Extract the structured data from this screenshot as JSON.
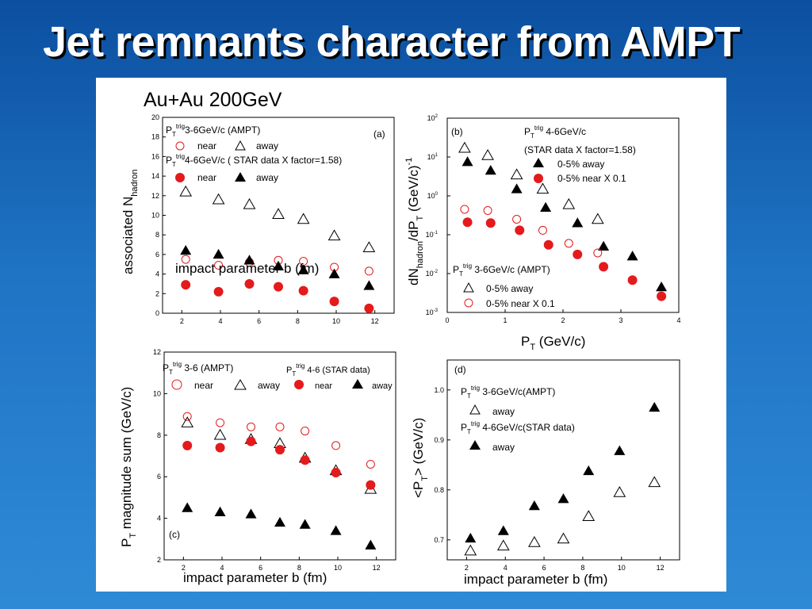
{
  "slide": {
    "title": "Jet remnants character from AMPT",
    "figure_heading": "Au+Au 200GeV"
  },
  "colors": {
    "background": "#1f74c4",
    "title_text": "#ffffff",
    "open_marker": "#e41a1c",
    "filled_marker": "#e41a1c",
    "triangle": "#000000"
  },
  "chart_data": [
    {
      "id": "a",
      "panel_label": "(a)",
      "type": "scatter",
      "xlabel": "impact parameter b (fm)",
      "ylabel": "associated N",
      "ylabel_sub": "hadron",
      "xlim": [
        1.0,
        13.0
      ],
      "ylim": [
        0,
        20
      ],
      "xticks": [
        "2",
        "4",
        "6",
        "8",
        "10",
        "12"
      ],
      "yticks": [
        "0",
        "2",
        "4",
        "6",
        "8",
        "10",
        "12",
        "14",
        "16",
        "18",
        "20"
      ],
      "legend": {
        "group1_pt": "P",
        "group1_sub": "T",
        "group1_sup": "trig",
        "group1_rest": "3-6GeV/c (AMPT)",
        "group2_pt": "P",
        "group2_sub": "T",
        "group2_sup": "trig",
        "group2_rest": "4-6GeV/c ( STAR data X factor=1.58)",
        "near": "near",
        "away": "away"
      },
      "series": [
        {
          "key": "near_ampt",
          "marker": "open-circle",
          "x": [
            2.2,
            3.9,
            5.5,
            7.0,
            8.3,
            9.9,
            11.7
          ],
          "y": [
            5.5,
            4.9,
            5.2,
            5.4,
            5.3,
            4.7,
            4.3
          ]
        },
        {
          "key": "away_ampt",
          "marker": "open-triangle",
          "x": [
            2.2,
            3.9,
            5.5,
            7.0,
            8.3,
            9.9,
            11.7
          ],
          "y": [
            12.4,
            11.6,
            11.1,
            10.1,
            9.6,
            7.9,
            6.7
          ]
        },
        {
          "key": "near_star",
          "marker": "filled-circle",
          "x": [
            2.2,
            3.9,
            5.5,
            7.0,
            8.3,
            9.9,
            11.7
          ],
          "y": [
            2.9,
            2.2,
            3.0,
            2.7,
            2.3,
            1.2,
            0.5
          ]
        },
        {
          "key": "away_star",
          "marker": "filled-triangle",
          "x": [
            2.2,
            3.9,
            5.5,
            7.0,
            8.3,
            9.9,
            11.7
          ],
          "y": [
            6.4,
            6.0,
            5.4,
            4.8,
            4.4,
            4.0,
            2.8
          ]
        }
      ]
    },
    {
      "id": "b",
      "panel_label": "(b)",
      "type": "scatter",
      "xlabel": "P",
      "xlabel_sub": "T",
      "xlabel_rest": " (GeV/c)",
      "ylabel": "dN",
      "ylabel_sub": "hadron",
      "ylabel_rest": "/dP",
      "ylabel_sub2": "T",
      "ylabel_rest2": " (GeV/c)",
      "ylabel_sup": "-1",
      "log_y": true,
      "xlim": [
        0,
        4
      ],
      "ylim_log10": [
        -3,
        2
      ],
      "xticks": [
        "0",
        "1",
        "2",
        "3",
        "4"
      ],
      "yticks": [
        {
          "base": "10",
          "exp": "-3"
        },
        {
          "base": "10",
          "exp": "-2"
        },
        {
          "base": "10",
          "exp": "-1"
        },
        {
          "base": "10",
          "exp": "0"
        },
        {
          "base": "10",
          "exp": "1"
        },
        {
          "base": "10",
          "exp": "2"
        }
      ],
      "legend": {
        "star_pt": "P",
        "star_sub": "T",
        "star_sup": "trig",
        "star_rest": " 4-6GeV/c",
        "star_note": "(STAR data X factor=1.58)",
        "star_away": "0-5% away",
        "star_near": "0-5% near  X 0.1",
        "ampt_pt": "P",
        "ampt_sub": "T",
        "ampt_sup": "trig",
        "ampt_rest": " 3-6GeV/c (AMPT)",
        "ampt_away": "0-5% away",
        "ampt_near": "0-5% near  X 0.1"
      },
      "series": [
        {
          "key": "away_ampt",
          "marker": "open-triangle",
          "x": [
            0.3,
            0.7,
            1.2,
            1.65,
            2.1,
            2.6
          ],
          "y": [
            17,
            11,
            3.5,
            1.5,
            0.6,
            0.25
          ]
        },
        {
          "key": "away_star",
          "marker": "filled-triangle",
          "x": [
            0.35,
            0.75,
            1.2,
            1.7,
            2.25,
            2.7,
            3.2,
            3.7
          ],
          "y": [
            7.5,
            4.5,
            1.5,
            0.5,
            0.2,
            0.05,
            0.028,
            0.0045
          ]
        },
        {
          "key": "near_ampt",
          "marker": "open-circle",
          "x": [
            0.3,
            0.7,
            1.2,
            1.65,
            2.1,
            2.6
          ],
          "y": [
            0.45,
            0.42,
            0.25,
            0.13,
            0.06,
            0.034
          ]
        },
        {
          "key": "near_star",
          "marker": "filled-circle",
          "x": [
            0.35,
            0.75,
            1.25,
            1.75,
            2.25,
            2.7,
            3.2,
            3.7
          ],
          "y": [
            0.21,
            0.2,
            0.13,
            0.055,
            0.031,
            0.015,
            0.0068,
            0.0026
          ]
        }
      ]
    },
    {
      "id": "c",
      "panel_label": "(c)",
      "type": "scatter",
      "xlabel": "impact parameter b (fm)",
      "ylabel_pt": "P",
      "ylabel_sub": "T",
      "ylabel": " magnitude sum (GeV/c)",
      "xlim": [
        1.0,
        13.0
      ],
      "ylim": [
        2,
        12
      ],
      "xticks": [
        "2",
        "4",
        "6",
        "8",
        "10",
        "12"
      ],
      "yticks": [
        "2",
        "4",
        "6",
        "8",
        "10",
        "12"
      ],
      "legend": {
        "group1_pt": "P",
        "group1_sub": "T",
        "group1_sup": "trig",
        "group1_rest": " 3-6 (AMPT)",
        "group2_pt": "P",
        "group2_sub": "T",
        "group2_sup": "trig",
        "group2_rest": " 4-6 (STAR data)",
        "near": "near",
        "away": "away"
      },
      "series": [
        {
          "key": "near_ampt",
          "marker": "open-circle",
          "x": [
            2.2,
            3.9,
            5.5,
            7.0,
            8.3,
            9.9,
            11.7
          ],
          "y": [
            8.9,
            8.6,
            8.4,
            8.4,
            8.2,
            7.5,
            6.6
          ]
        },
        {
          "key": "away_ampt",
          "marker": "open-triangle",
          "x": [
            2.2,
            3.9,
            5.5,
            7.0,
            8.3,
            9.9,
            11.7
          ],
          "y": [
            8.6,
            8.0,
            7.8,
            7.6,
            6.9,
            6.3,
            5.4
          ]
        },
        {
          "key": "near_star",
          "marker": "filled-circle",
          "x": [
            2.2,
            3.9,
            5.5,
            7.0,
            8.3,
            9.9,
            11.7
          ],
          "y": [
            7.5,
            7.4,
            7.7,
            7.3,
            6.8,
            6.2,
            5.6
          ]
        },
        {
          "key": "away_star",
          "marker": "filled-triangle",
          "x": [
            2.2,
            3.9,
            5.5,
            7.0,
            8.3,
            9.9,
            11.7
          ],
          "y": [
            4.5,
            4.3,
            4.2,
            3.8,
            3.7,
            3.4,
            2.7
          ]
        }
      ]
    },
    {
      "id": "d",
      "panel_label": "(d)",
      "type": "scatter",
      "xlabel": "impact parameter b (fm)",
      "ylabel_pre": "<P",
      "ylabel_sub": "T",
      "ylabel": "> (GeV/c)",
      "xlim": [
        1.0,
        13.0
      ],
      "ylim": [
        0.66,
        1.06
      ],
      "xticks": [
        "2",
        "4",
        "6",
        "8",
        "10",
        "12"
      ],
      "yticks": [
        "0.7",
        "0.8",
        "0.9",
        "1.0"
      ],
      "ytick_values": [
        0.7,
        0.8,
        0.9,
        1.0
      ],
      "legend": {
        "group1_pt": "P",
        "group1_sub": "T",
        "group1_sup": "trig",
        "group1_rest": " 3-6GeV/c(AMPT)",
        "group2_pt": "P",
        "group2_sub": "T",
        "group2_sup": "trig",
        "group2_rest": " 4-6GeV/c(STAR data)",
        "away": "away"
      },
      "series": [
        {
          "key": "away_ampt",
          "marker": "open-triangle",
          "x": [
            2.2,
            3.9,
            5.5,
            7.0,
            8.3,
            9.9,
            11.7
          ],
          "y": [
            0.678,
            0.688,
            0.695,
            0.702,
            0.747,
            0.795,
            0.815
          ]
        },
        {
          "key": "away_star",
          "marker": "filled-triangle",
          "x": [
            2.2,
            3.9,
            5.5,
            7.0,
            8.3,
            9.9,
            11.7
          ],
          "y": [
            0.703,
            0.718,
            0.768,
            0.782,
            0.838,
            0.878,
            0.965
          ]
        }
      ]
    }
  ]
}
